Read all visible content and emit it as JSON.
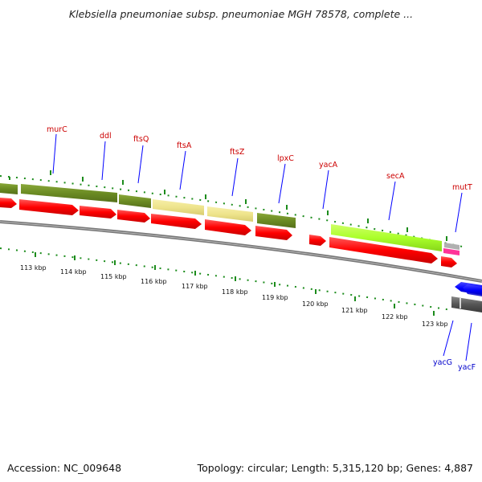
{
  "header": {
    "title": "Klebsiella pneumoniae subsp. pneumoniae MGH 78578, complete ..."
  },
  "footer": {
    "accession": "Accession: NC_009648",
    "summary": "Topology: circular; Length: 5,315,120 bp; Genes: 4,887"
  },
  "colors": {
    "axis_tick": "#1c8c1c",
    "cds_forward": "#ff0000",
    "cds_reverse": "#0000ff",
    "olive_gene": "#6b8b23",
    "khaki_gene": "#eee48c",
    "lime_gene": "#b3ff33",
    "pink_gene": "#ff3399",
    "gray_gene": "#555555",
    "label_red": "#cc0000",
    "label_blue": "#0000cc"
  },
  "ruler": {
    "labels": [
      "113 kbp",
      "114 kbp",
      "115 kbp",
      "116 kbp",
      "117 kbp",
      "118 kbp",
      "119 kbp",
      "120 kbp",
      "121 kbp",
      "122 kbp",
      "123 kbp"
    ]
  },
  "genes_top": [
    {
      "name": "murC"
    },
    {
      "name": "ddl"
    },
    {
      "name": "ftsQ"
    },
    {
      "name": "ftsA"
    },
    {
      "name": "ftsZ"
    },
    {
      "name": "lpxC"
    },
    {
      "name": "yacA"
    },
    {
      "name": "secA"
    },
    {
      "name": "mutT"
    }
  ],
  "genes_bottom": [
    {
      "name": "yacG"
    },
    {
      "name": "yacF"
    }
  ]
}
